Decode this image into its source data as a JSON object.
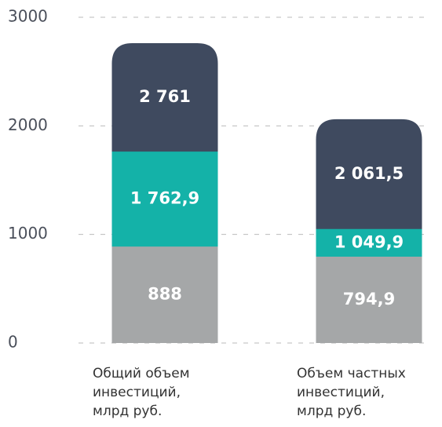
{
  "chart_data": {
    "type": "bar",
    "categories": [
      "Общий объем\nинвестиций,\nмлрд руб.",
      "Объем частных\nинвестиций,\nмлрд руб."
    ],
    "series": [
      {
        "color": "#a5a7a8",
        "values": [
          888,
          794.9
        ],
        "value_labels": [
          "888",
          "794,9"
        ]
      },
      {
        "color": "#14b2a8",
        "values": [
          1762.9,
          1049.9
        ],
        "value_labels": [
          "1 762,9",
          "1 049,9"
        ]
      },
      {
        "color": "#3f4a5f",
        "values": [
          2761,
          2061.5
        ],
        "value_labels": [
          "2 761",
          "2 061,5"
        ]
      }
    ],
    "ylim": [
      0,
      3000
    ],
    "yticks": [
      0,
      1000,
      2000,
      3000
    ],
    "grid": true
  }
}
